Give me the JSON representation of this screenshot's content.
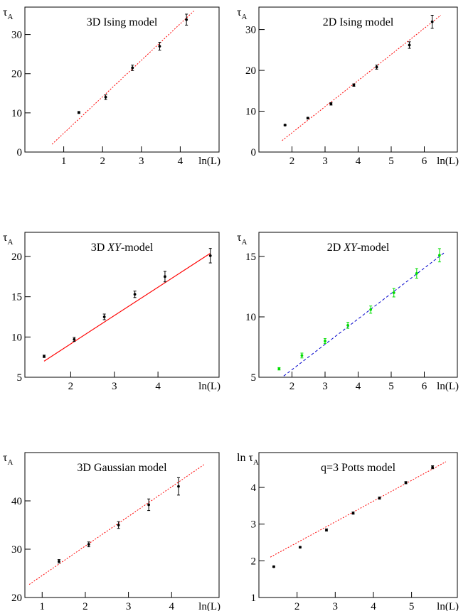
{
  "chart_data": [
    {
      "type": "scatter",
      "title": "3D Ising model",
      "title_italic": "",
      "title_suffix": "",
      "ylabel": "τ",
      "ylabel_sub": "A",
      "xlabel": "ln(L)",
      "xlim": [
        0,
        5.0
      ],
      "ylim": [
        0,
        37
      ],
      "xticks": [
        1,
        2,
        3,
        4
      ],
      "yticks": [
        0,
        10,
        20,
        30
      ],
      "grid": false,
      "fit": {
        "x": [
          0.7,
          4.35
        ],
        "y": [
          2,
          36
        ],
        "color": "#ff0000",
        "style": "dotted"
      },
      "series": [
        {
          "color": "#000000",
          "x": [
            1.39,
            2.08,
            2.77,
            3.47,
            4.16
          ],
          "y": [
            10.1,
            14.0,
            21.5,
            27.0,
            33.8
          ],
          "err": [
            0.25,
            0.6,
            0.7,
            1.0,
            1.4
          ]
        }
      ]
    },
    {
      "type": "scatter",
      "title": "2D Ising model",
      "title_italic": "",
      "title_suffix": "",
      "ylabel": "τ",
      "ylabel_sub": "A",
      "xlabel": "ln(L)",
      "xlim": [
        1.0,
        7.0
      ],
      "ylim": [
        0,
        35.5
      ],
      "xticks": [
        2,
        3,
        4,
        5,
        6
      ],
      "yticks": [
        0,
        10,
        20,
        30
      ],
      "grid": false,
      "fit": {
        "x": [
          1.7,
          6.5
        ],
        "y": [
          2.8,
          33.5
        ],
        "color": "#ff0000",
        "style": "dotted"
      },
      "series": [
        {
          "color": "#000000",
          "x": [
            1.79,
            2.48,
            3.18,
            3.87,
            4.56,
            5.55,
            6.24
          ],
          "y": [
            6.6,
            8.3,
            11.8,
            16.4,
            20.8,
            26.2,
            31.9
          ],
          "err": [
            0.15,
            0.2,
            0.3,
            0.3,
            0.5,
            0.8,
            1.6
          ]
        }
      ]
    },
    {
      "type": "scatter",
      "title": "3D ",
      "title_italic": "XY",
      "title_suffix": "-model",
      "ylabel": "τ",
      "ylabel_sub": "A",
      "xlabel": "ln(L)",
      "xlim": [
        0.95,
        5.4
      ],
      "ylim": [
        5,
        23
      ],
      "xticks": [
        2,
        3,
        4
      ],
      "yticks": [
        5,
        10,
        15,
        20
      ],
      "grid": false,
      "fit": {
        "x": [
          1.39,
          5.2
        ],
        "y": [
          7.0,
          20.4
        ],
        "color": "#ff0000",
        "style": "solid"
      },
      "series": [
        {
          "color": "#000000",
          "x": [
            1.39,
            2.08,
            2.77,
            3.47,
            4.16,
            5.2
          ],
          "y": [
            7.6,
            9.7,
            12.5,
            15.3,
            17.5,
            20.1
          ],
          "err": [
            0.15,
            0.25,
            0.35,
            0.4,
            0.65,
            0.9
          ]
        }
      ]
    },
    {
      "type": "scatter",
      "title": "2D ",
      "title_italic": "XY",
      "title_suffix": "-model",
      "ylabel": "τ",
      "ylabel_sub": "A",
      "xlabel": "ln(L)",
      "xlim": [
        1.0,
        7.0
      ],
      "ylim": [
        5,
        17
      ],
      "xticks": [
        2,
        3,
        4,
        5,
        6
      ],
      "yticks": [
        5,
        10,
        15
      ],
      "grid": false,
      "fit": {
        "x": [
          1.75,
          6.6
        ],
        "y": [
          5.1,
          15.3
        ],
        "color": "#0000cc",
        "style": "dashed"
      },
      "series": [
        {
          "color": "#00dd00",
          "x": [
            1.61,
            2.3,
            3.0,
            3.69,
            4.38,
            5.08,
            5.77,
            6.46
          ],
          "y": [
            5.7,
            6.8,
            8.0,
            9.3,
            10.6,
            12.0,
            13.6,
            15.1
          ],
          "err": [
            0.1,
            0.2,
            0.2,
            0.25,
            0.3,
            0.35,
            0.4,
            0.55
          ]
        }
      ]
    },
    {
      "type": "scatter",
      "title": "3D Gaussian model",
      "title_italic": "",
      "title_suffix": "",
      "ylabel": "τ",
      "ylabel_sub": "A",
      "xlabel": "ln(L)",
      "xlim": [
        0.6,
        5.1
      ],
      "ylim": [
        20,
        50
      ],
      "xticks": [
        1,
        2,
        3,
        4
      ],
      "yticks": [
        20,
        30,
        40
      ],
      "grid": false,
      "fit": {
        "x": [
          0.7,
          4.75
        ],
        "y": [
          22.7,
          47.5
        ],
        "color": "#ff0000",
        "style": "dotted"
      },
      "series": [
        {
          "color": "#000000",
          "x": [
            1.39,
            2.08,
            2.77,
            3.47,
            4.16
          ],
          "y": [
            27.5,
            31.0,
            35.0,
            39.2,
            43.0
          ],
          "err": [
            0.35,
            0.5,
            0.7,
            1.2,
            1.8
          ]
        }
      ]
    },
    {
      "type": "scatter",
      "title": "q=3 Potts model",
      "title_italic": "",
      "title_suffix": "",
      "ylabel": "ln τ",
      "ylabel_sub": "A",
      "xlabel": "ln(L)",
      "xlim": [
        1.0,
        6.2
      ],
      "ylim": [
        1,
        4.95
      ],
      "xticks": [
        2,
        3,
        4,
        5
      ],
      "yticks": [
        1,
        2,
        3,
        4
      ],
      "grid": false,
      "fit": {
        "x": [
          1.3,
          5.9
        ],
        "y": [
          2.1,
          4.7
        ],
        "color": "#ff0000",
        "style": "dotted"
      },
      "series": [
        {
          "color": "#000000",
          "x": [
            1.39,
            2.08,
            2.77,
            3.47,
            4.16,
            4.85,
            5.55
          ],
          "y": [
            1.84,
            2.37,
            2.84,
            3.3,
            3.71,
            4.13,
            4.55
          ],
          "err": [
            0.02,
            0.02,
            0.03,
            0.03,
            0.03,
            0.03,
            0.04
          ]
        }
      ]
    }
  ]
}
